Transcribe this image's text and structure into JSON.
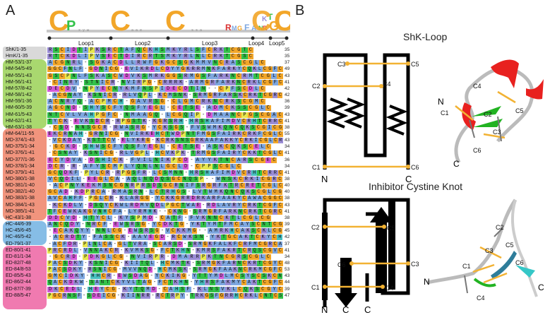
{
  "panels": {
    "a": "A",
    "b": "B"
  },
  "loops": [
    "Loop1",
    "Loop2",
    "Loop3",
    "Loop4",
    "Loop5"
  ],
  "logo_letters": [
    "C",
    "P",
    "C",
    "C",
    "R",
    "M",
    "G",
    "F",
    "A",
    "N",
    "R",
    "K",
    "T",
    "C",
    "G",
    "C"
  ],
  "rows": [
    {
      "name": "ShK/1-35",
      "group": "ref",
      "end": "35",
      "seq": "RSCIDTIPKSRCTAFQCKHSMKYRLSFCRKTCGTC"
    },
    {
      "name": "HmK/1-35",
      "group": "ref",
      "end": "35",
      "seq": "RTCKDLIPVSECTDIRCRTSMKYRLNLCRKTCGSC"
    },
    {
      "name": "HM-53/1-37",
      "group": "HM",
      "end": "37",
      "seq": "ACGNRL-SGKACDLLRWFGKGCSGKMMVNCRASCGLC"
    },
    {
      "name": "HM-54/5-49",
      "group": "HM",
      "end": "49",
      "seq": "GGCFNLF-GDNICG-EVIKRDLCDYYGKRRMNKFARKYCQKLCGFC"
    },
    {
      "name": "HM-55/1-43",
      "group": "HM",
      "end": "43",
      "seq": "GSCPNLFSKASCWDVKSMRKGGSRMGSFARKNCRMTCGLC"
    },
    {
      "name": "HM-56/1-41",
      "group": "HM",
      "end": "41",
      "seq": "-CINRY-STNICR-NVIRPG-CRRRK-ARMGRFARKNCRKLCGFC"
    },
    {
      "name": "HM-57/8-42",
      "group": "HM",
      "end": "42",
      "seq": "DECDV-NPYECNYKMFNSPIDECDTIN--CPFSCDLC"
    },
    {
      "name": "HM-58/1-42",
      "group": "HM",
      "end": "42",
      "seq": "-ACGNAY-KSNICR-RLVQPL-KCMSNK-SRMGRFARSKCRKTCGRC"
    },
    {
      "name": "HM-59/1-36",
      "group": "HM",
      "end": "36",
      "seq": "ACNRYQ-ACPMCH-GAVRSG-CLGMCRKNCRKSCGMC"
    },
    {
      "name": "HM-60/5-39",
      "group": "HM",
      "end": "39",
      "seq": "AGCND-SHYSCFYQSFYEGL-CETSE-ADMCKSSCGLC"
    },
    {
      "name": "HM-61/5-43",
      "group": "HM",
      "end": "43",
      "seq": "NTCVLVAHPGFC-NMAAGQ-LCGQIP-DMAANCPGSCGAC"
    },
    {
      "name": "HM-62/1-41",
      "group": "HM",
      "end": "41",
      "seq": "TYCK-EVKSDCR-RPGSTK-KGRSRH-HRSHAFIMDVCRHTCRRC"
    },
    {
      "name": "HM-63/1-38",
      "group": "HM",
      "end": "38",
      "seq": "-CSD-NNSGCR-RWASRG-YCKSGS-FVSWMKQNCQKSCGICG"
    },
    {
      "name": "HM-64/11-55",
      "group": "HM",
      "end": "55",
      "seq": "EKCRNAH-GRNICG-NVIRKEHCTWDPNTFMGSFAIRKCRKFCGLC"
    },
    {
      "name": "MD-374/1-43",
      "group": "MD",
      "end": "43",
      "seq": "-VCKDAY-KSTTCV-ELYKRG-KCRKSNSGRKAAFAKKYCRKICGLCR"
    },
    {
      "name": "MD-375/1-34",
      "group": "MD",
      "end": "34",
      "seq": "-GCKD-SHWSCFYQSFYEGL-CETSE-ASKCQKSCELC"
    },
    {
      "name": "MD-376/1-41",
      "group": "MD",
      "end": "41",
      "seq": "-CSNAY-KSNICG-RLVGPL-HCVKPK-TRMGSFAIRYCKKTCGLC"
    },
    {
      "name": "MD-377/1-36",
      "group": "MD",
      "end": "36",
      "seq": "ECYDVA-DSHICK-FVILNIKPCD-AYYKTNCARSCGEC"
    },
    {
      "name": "MD-378/1-34",
      "group": "MD",
      "end": "34",
      "seq": "DCR-R-AFYSCMPLYQNLNLGCLD-CPPSCGLC"
    },
    {
      "name": "MD-379/1-41",
      "group": "MD",
      "end": "41",
      "seq": "GCQDKF-PYLCR-RPGSFR-LCSMNN-HRSHAFIMDVCRHTCRRC"
    },
    {
      "name": "MD-380/1-38",
      "group": "MD",
      "end": "38",
      "seq": "VCQDIL-EEGLCA-AQLNQDQSGCNQSP--WNSKCRKICGRC"
    },
    {
      "name": "MD-381/1-40",
      "group": "MD",
      "end": "40",
      "seq": "-ACPNYKEKMSNCGNRPRSDSGCRNIFSRGRFKTRCRETCGLC"
    },
    {
      "name": "MD-382/1-40",
      "group": "MD",
      "end": "40",
      "seq": "GCAD-KDPRCA-RMASRN-LCTRHGS-LVTWMKQNCQKSCGLCG"
    },
    {
      "name": "MD-383/1-38",
      "group": "MD",
      "end": "38",
      "seq": "AVCAHFF-PGLCR-KLARGG-YCKKGRRDRKARFAAKYCAWACGGC"
    },
    {
      "name": "MD-384/1-43",
      "group": "MD",
      "end": "43",
      "seq": "-KCKDLV-DSQYCKWLRDMVQDLPGCTWAE-RDLAVRYCRKTCGFC"
    },
    {
      "name": "MD-385/1-41",
      "group": "MD",
      "end": "41",
      "seq": "TFCEWKAKGVNHCFA-LYRMHK--CKNG-SRMGRFARKNCRKTCGRC"
    },
    {
      "name": "HC-43/1-38",
      "group": "HC",
      "end": "38",
      "seq": "DDCVD-HTYCL-KYSPMD-CATF-FVKNNCKTLCGLCG"
    },
    {
      "name": "HC-44/6-39",
      "group": "HC",
      "end": "39",
      "seq": "ANCQDY-NRCF-EWSRSG-YCDKTG-YKTYMTFMCAYSCNTCG"
    },
    {
      "name": "HC-45/6-45",
      "group": "HC",
      "end": "45",
      "seq": "-ECAKQYY-NNLCG-EWSRSG-VCKKMG--AMRKHCAKSCKLCG"
    },
    {
      "name": "HC-46/5-42",
      "group": "HC",
      "end": "42",
      "seq": "-ACRDTY-FASSCK-AAVEGD-RCWKSN-YKTGCAKTCKYCH"
    },
    {
      "name": "ED-79/1-37",
      "group": "ED",
      "end": "37",
      "seq": "-ACFDR-PLNLCA-GLTVRA-SCARSD-SRMGKFALKFCRFMCGRCA"
    },
    {
      "name": "ED-80/1-41",
      "group": "ED",
      "end": "41",
      "seq": "PRCRDL-VNNAKCR-KVMKSG-FCTKHN-KMRSFAKRTCRQSCGVC"
    },
    {
      "name": "ED-81/1-34",
      "group": "ED",
      "end": "34",
      "seq": "-GCRD-PDKGLCG-NVIRPR-DMARRPKTNCGRSCGLC"
    },
    {
      "name": "ED-82/7-48",
      "group": "ED",
      "end": "48",
      "seq": "PACSDKY-KSNICG-KIITQL-HCMKTK-SRMGKFARNCKRTCGYC"
    },
    {
      "name": "ED-84/8-53",
      "group": "ED",
      "end": "53",
      "seq": "PACSDKY-RSNICG-MVVNQD-HCMKSK-SRMGKFAAKNCRKMCGFC"
    },
    {
      "name": "ED-85/5-43",
      "group": "ED",
      "end": "43",
      "seq": "GMCIDKY-HHCR-EWSDAG-YCKIKG-YTTYMDLMCSYSCSKCN"
    },
    {
      "name": "ED-86/2-44",
      "group": "ED",
      "end": "44",
      "seq": "QACKDKW-SANTCKYVLTAG-FCTKHN-YHRSFAKMYCAKTCGFC"
    },
    {
      "name": "ED-87/7-39",
      "group": "ED",
      "end": "39",
      "seq": "DKCEDL-HEYCG-KYTQMD-CAHSF-KLNSVKLCQKSCGYC"
    },
    {
      "name": "ED-88/5-47",
      "group": "ED",
      "end": "47",
      "seq": "PGCRNSF-SDEICG-KIINRR-RCTRPY-TRKGSFGRRHCRKLCNTCS"
    }
  ],
  "shk_loop": {
    "title": "ShK-Loop",
    "cys": [
      "C1",
      "C2",
      "C3",
      "C4",
      "C5",
      "C6"
    ],
    "termini": [
      "N",
      "C"
    ],
    "struct_labels": [
      "C1",
      "C2",
      "C3",
      "C4",
      "C5",
      "C6",
      "N",
      "C"
    ]
  },
  "ick": {
    "title": "Inhibitor Cystine Knot",
    "cys": [
      "C1",
      "C2",
      "C3",
      "C4",
      "C5",
      "C6"
    ],
    "termini": [
      "N",
      "C",
      "C"
    ],
    "struct_labels": [
      "N",
      "C1",
      "C2",
      "C3",
      "C4",
      "C5",
      "C6",
      "C"
    ]
  },
  "colors": {
    "ref": "#d9d9d9",
    "HM": "#a9d86f",
    "MD": "#f1947d",
    "HC": "#86bde6",
    "ED": "#f07ab0",
    "C": "#f2a629",
    "K": "#9b8dd6",
    "R": "#9b8dd6",
    "D": "#d45ad8",
    "E": "#d45ad8",
    "N": "#33c24a",
    "Q": "#33c24a",
    "S": "#33c24a",
    "T": "#33c24a",
    "G": "#f2a629",
    "P": "#e6e64d",
    "hydrophobic": "#7ea7e0",
    "disulfide": "#f2b233",
    "backbone": "#000000"
  }
}
